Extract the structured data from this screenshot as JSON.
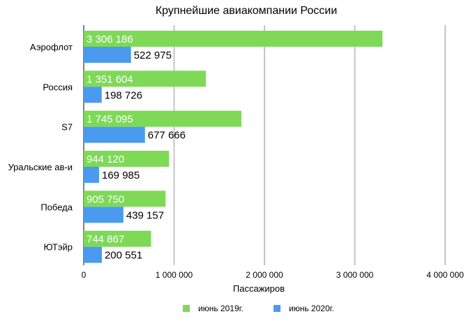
{
  "chart_data": {
    "type": "bar",
    "orientation": "horizontal",
    "title": "Крупнейшие авиакомпании России",
    "xlabel": "Пассажиров",
    "ylabel": "",
    "categories": [
      "Аэрофлот",
      "Россия",
      "S7",
      "Уральские ав-и",
      "Победа",
      "ЮТэйр"
    ],
    "series": [
      {
        "name": "июнь 2019г.",
        "color": "#7ED957",
        "values": [
          3306186,
          1351604,
          1745095,
          944120,
          905750,
          744867
        ],
        "labels": [
          "3 306 186",
          "1 351 604",
          "1 745 095",
          "944 120",
          "905 750",
          "744 867"
        ]
      },
      {
        "name": "июнь 2020г.",
        "color": "#4A9BF0",
        "values": [
          522975,
          198726,
          677666,
          169985,
          439157,
          200551
        ],
        "labels": [
          "522 975",
          "198 726",
          "677 666",
          "169 985",
          "439 157",
          "200 551"
        ]
      }
    ],
    "xlim": [
      0,
      4000000
    ],
    "xticks": [
      0,
      1000000,
      2000000,
      3000000,
      4000000
    ],
    "xtick_labels": [
      "0",
      "1 000 000",
      "2 000 000",
      "3 000 000",
      "4 000 000"
    ],
    "grid": "vertical",
    "legend": "bottom"
  }
}
